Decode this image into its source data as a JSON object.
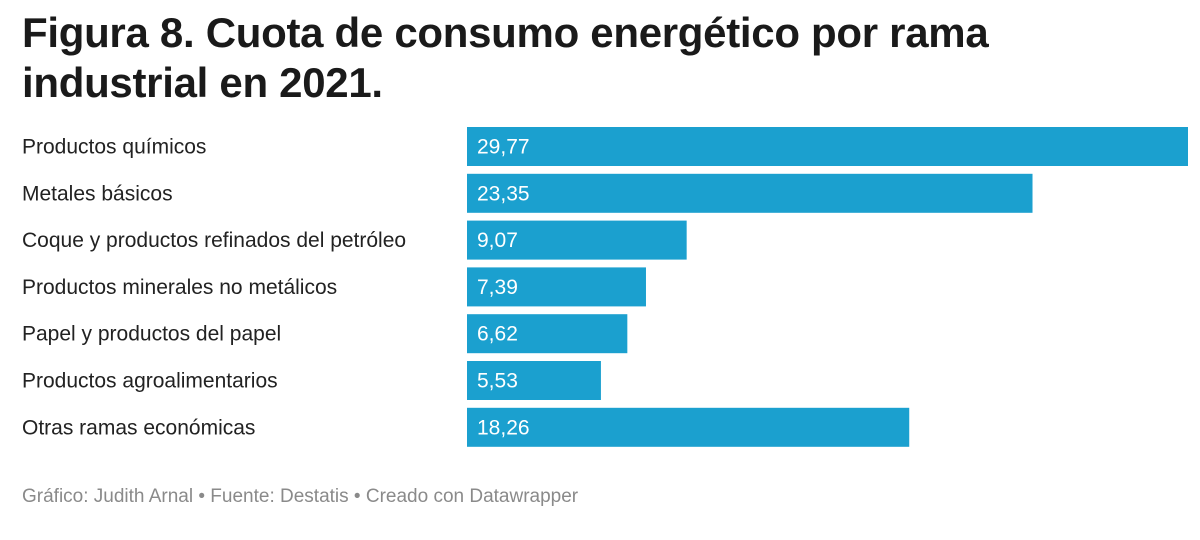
{
  "title": "Figura 8. Cuota de consumo energético por rama industrial en 2021.",
  "footer": "Gráfico: Judith Arnal • Fuente: Destatis • Creado con Datawrapper",
  "colors": {
    "bar": "#1ba0cf",
    "bar_label": "#ffffff",
    "category_label": "#222222"
  },
  "chart_data": {
    "type": "bar",
    "orientation": "horizontal",
    "title": "Figura 8. Cuota de consumo energético por rama industrial en 2021.",
    "xlabel": "",
    "ylabel": "",
    "grid": false,
    "categories": [
      "Productos químicos",
      "Metales básicos",
      "Coque y productos refinados del petróleo",
      "Productos minerales no metálicos",
      "Papel y productos del papel",
      "Productos agroalimentarios",
      "Otras ramas económicas"
    ],
    "values": [
      29.77,
      23.35,
      9.07,
      7.39,
      6.62,
      5.53,
      18.26
    ],
    "value_labels": [
      "29,77",
      "23,35",
      "9,07",
      "7,39",
      "6,62",
      "5,53",
      "18,26"
    ],
    "xlim": [
      0,
      29.77
    ]
  }
}
